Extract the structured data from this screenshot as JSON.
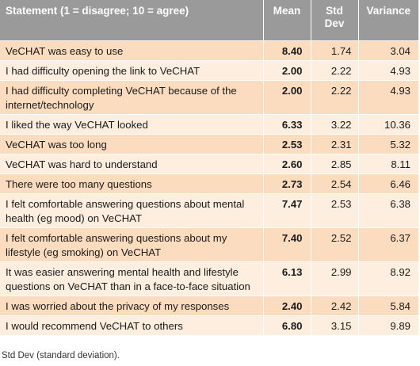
{
  "table": {
    "headers": {
      "statement": "Statement (1 = disagree; 10 = agree)",
      "mean": "Mean",
      "std_dev": "Std Dev",
      "variance": "Variance"
    },
    "rows": [
      {
        "statement": "VeCHAT was easy to use",
        "mean": "8.40",
        "std_dev": "1.74",
        "variance": "3.04"
      },
      {
        "statement": "I had difficulty opening the link to VeCHAT",
        "mean": "2.00",
        "std_dev": "2.22",
        "variance": "4.93"
      },
      {
        "statement": "I had difficulty completing VeCHAT because of the internet/technology",
        "mean": "2.00",
        "std_dev": "2.22",
        "variance": "4.93"
      },
      {
        "statement": "I liked the way VeCHAT looked",
        "mean": "6.33",
        "std_dev": "3.22",
        "variance": "10.36"
      },
      {
        "statement": "VeCHAT was too long",
        "mean": "2.53",
        "std_dev": "2.31",
        "variance": "5.32"
      },
      {
        "statement": "VeCHAT was hard to understand",
        "mean": "2.60",
        "std_dev": "2.85",
        "variance": "8.11"
      },
      {
        "statement": "There were too many questions",
        "mean": "2.73",
        "std_dev": "2.54",
        "variance": "6.46"
      },
      {
        "statement": "I felt comfortable answering questions about mental health (eg mood) on VeCHAT",
        "mean": "7.47",
        "std_dev": "2.53",
        "variance": "6.38"
      },
      {
        "statement": "I felt comfortable answering questions about my lifestyle (eg smoking) on VeCHAT",
        "mean": "7.40",
        "std_dev": "2.52",
        "variance": "6.37"
      },
      {
        "statement": "It was easier answering mental health and lifestyle questions on VeCHAT than in a face-to-face situation",
        "mean": "6.13",
        "std_dev": "2.99",
        "variance": "8.92"
      },
      {
        "statement": "I was worried about the privacy of my responses",
        "mean": "2.40",
        "std_dev": "2.42",
        "variance": "5.84"
      },
      {
        "statement": "I would recommend VeCHAT to others",
        "mean": "6.80",
        "std_dev": "3.15",
        "variance": "9.89"
      }
    ]
  },
  "footnote": "Std Dev (standard deviation).",
  "colors": {
    "header_bg": "#9a9a9a",
    "row_dark": "#fbdcbf",
    "row_light": "#fdeedf"
  }
}
